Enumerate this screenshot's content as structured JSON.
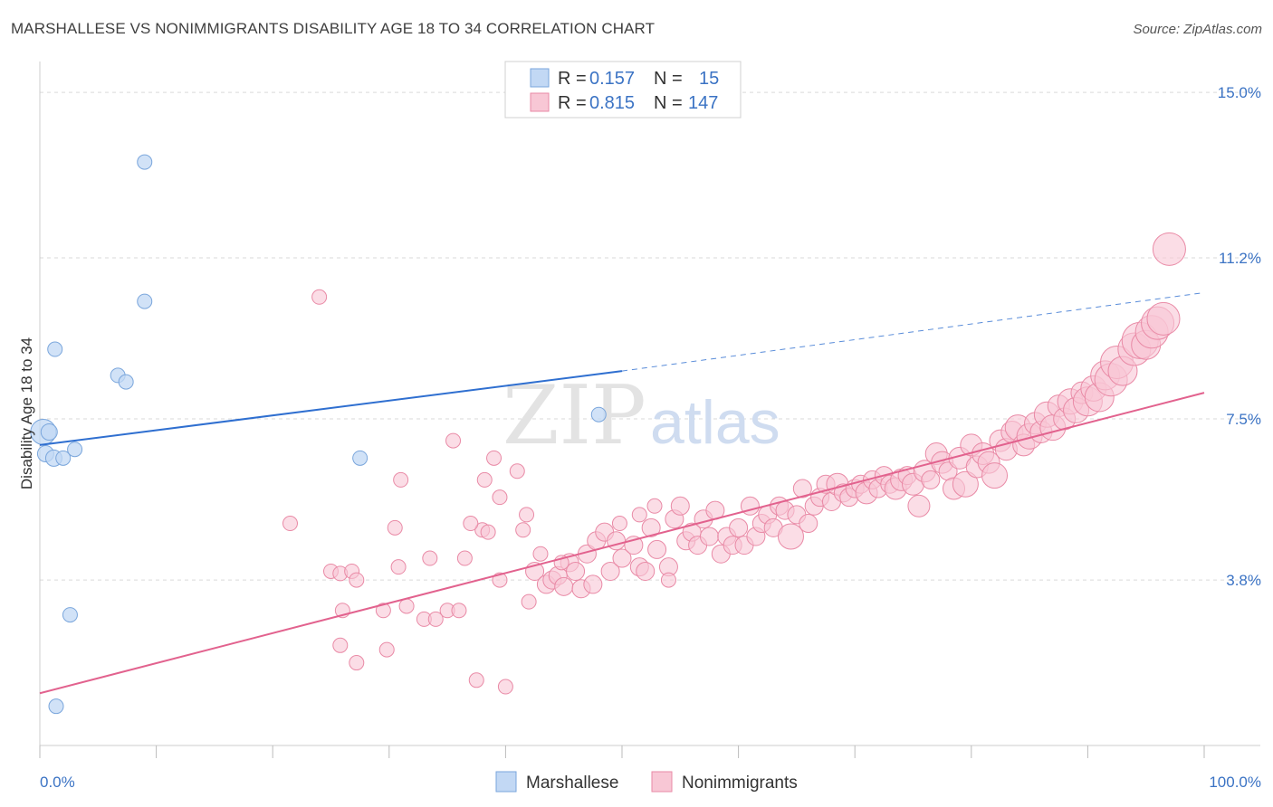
{
  "header": {
    "title": "MARSHALLESE VS NONIMMIGRANTS DISABILITY AGE 18 TO 34 CORRELATION CHART",
    "source": "Source: ZipAtlas.com"
  },
  "colors": {
    "blue_fill": "#c2d8f4",
    "blue_stroke": "#7aa6dc",
    "blue_line": "#2f6fd0",
    "pink_fill": "#f8c7d5",
    "pink_stroke": "#e98aa6",
    "pink_line": "#e2628e",
    "tick_text": "#3b73c4",
    "grid": "#d9d9d9"
  },
  "legend": {
    "rows": [
      {
        "r_label": "R =",
        "r_value": "0.157",
        "n_label": "N =",
        "n_value": "15"
      },
      {
        "r_label": "R =",
        "r_value": "0.815",
        "n_label": "N =",
        "n_value": "147"
      }
    ]
  },
  "watermark": {
    "zip": "ZIP",
    "atlas": "atlas"
  },
  "chart_data": {
    "type": "scatter",
    "title": "MARSHALLESE VS NONIMMIGRANTS DISABILITY AGE 18 TO 34 CORRELATION CHART",
    "xlabel": "",
    "ylabel": "Disability Age 18 to 34",
    "xlim": [
      0,
      100
    ],
    "ylim": [
      0,
      15.5
    ],
    "x_tick_labels": [
      "0.0%",
      "100.0%"
    ],
    "y_ticks": [
      3.8,
      7.5,
      11.2,
      15.0
    ],
    "y_tick_labels": [
      "3.8%",
      "7.5%",
      "11.2%",
      "15.0%"
    ],
    "grid": true,
    "legend_position": "top-center",
    "series": [
      {
        "name": "Marshallese",
        "color": "#c2d8f4",
        "points": [
          [
            0.3,
            7.2,
            14
          ],
          [
            0.8,
            7.2,
            9
          ],
          [
            0.5,
            6.7,
            9
          ],
          [
            1.2,
            6.6,
            9
          ],
          [
            2.0,
            6.6,
            8
          ],
          [
            3.0,
            6.8,
            8
          ],
          [
            1.3,
            9.1,
            8
          ],
          [
            6.7,
            8.5,
            8
          ],
          [
            7.4,
            8.35,
            8
          ],
          [
            9.0,
            13.4,
            8
          ],
          [
            9.0,
            10.2,
            8
          ],
          [
            2.6,
            3.0,
            8
          ],
          [
            1.4,
            0.9,
            8
          ],
          [
            27.5,
            6.6,
            8
          ],
          [
            48.0,
            7.6,
            8
          ]
        ],
        "trend": {
          "x0": 0,
          "y0": 6.9,
          "x1": 50,
          "y1": 8.6,
          "dashed_to_x": 100,
          "dashed_to_y": 10.4
        }
      },
      {
        "name": "Nonimmigrants",
        "color": "#f8c7d5",
        "points": [
          [
            24.0,
            10.3,
            8
          ],
          [
            21.5,
            5.1,
            8
          ],
          [
            25.0,
            4.0,
            8
          ],
          [
            25.8,
            3.95,
            8
          ],
          [
            26.8,
            4.0,
            8
          ],
          [
            27.2,
            3.8,
            8
          ],
          [
            26.0,
            3.1,
            8
          ],
          [
            25.8,
            2.3,
            8
          ],
          [
            27.2,
            1.9,
            8
          ],
          [
            29.5,
            3.1,
            8
          ],
          [
            29.8,
            2.2,
            8
          ],
          [
            30.5,
            5.0,
            8
          ],
          [
            30.8,
            4.1,
            8
          ],
          [
            31.5,
            3.2,
            8
          ],
          [
            33.0,
            2.9,
            8
          ],
          [
            34.0,
            2.9,
            8
          ],
          [
            35.0,
            3.1,
            8
          ],
          [
            36.0,
            3.1,
            8
          ],
          [
            35.5,
            7.0,
            8
          ],
          [
            36.5,
            4.3,
            8
          ],
          [
            37.5,
            1.5,
            8
          ],
          [
            38.0,
            4.95,
            8
          ],
          [
            38.5,
            4.9,
            8
          ],
          [
            39.0,
            6.6,
            8
          ],
          [
            39.5,
            5.7,
            8
          ],
          [
            39.5,
            3.8,
            8
          ],
          [
            40.0,
            1.35,
            8
          ],
          [
            41.0,
            6.3,
            8
          ],
          [
            41.5,
            4.95,
            8
          ],
          [
            41.8,
            5.3,
            8
          ],
          [
            42.5,
            4.0,
            10
          ],
          [
            43.5,
            3.7,
            10
          ],
          [
            44.0,
            3.8,
            10
          ],
          [
            44.5,
            3.9,
            10
          ],
          [
            45.0,
            3.65,
            10
          ],
          [
            45.5,
            4.2,
            10
          ],
          [
            46.0,
            4.0,
            10
          ],
          [
            46.5,
            3.6,
            10
          ],
          [
            47.5,
            3.7,
            10
          ],
          [
            47.0,
            4.4,
            10
          ],
          [
            47.8,
            4.7,
            10
          ],
          [
            48.5,
            4.9,
            10
          ],
          [
            49.0,
            4.0,
            10
          ],
          [
            49.5,
            4.7,
            10
          ],
          [
            50.0,
            4.3,
            10
          ],
          [
            51.0,
            4.6,
            10
          ],
          [
            51.5,
            4.1,
            10
          ],
          [
            52.0,
            4.0,
            10
          ],
          [
            52.5,
            5.0,
            10
          ],
          [
            53.0,
            4.5,
            10
          ],
          [
            54.0,
            4.1,
            10
          ],
          [
            54.5,
            5.2,
            10
          ],
          [
            55.0,
            5.5,
            10
          ],
          [
            55.5,
            4.7,
            10
          ],
          [
            56.0,
            4.9,
            10
          ],
          [
            56.5,
            4.6,
            10
          ],
          [
            57.0,
            5.2,
            10
          ],
          [
            57.5,
            4.8,
            10
          ],
          [
            58.0,
            5.4,
            10
          ],
          [
            58.5,
            4.4,
            10
          ],
          [
            59.0,
            4.8,
            10
          ],
          [
            59.5,
            4.6,
            10
          ],
          [
            60.0,
            5.0,
            10
          ],
          [
            60.5,
            4.6,
            10
          ],
          [
            61.0,
            5.5,
            10
          ],
          [
            61.5,
            4.8,
            10
          ],
          [
            62.0,
            5.1,
            10
          ],
          [
            62.5,
            5.3,
            10
          ],
          [
            63.0,
            5.0,
            10
          ],
          [
            63.5,
            5.5,
            10
          ],
          [
            64.0,
            5.4,
            10
          ],
          [
            64.5,
            4.8,
            14
          ],
          [
            65.0,
            5.3,
            10
          ],
          [
            65.5,
            5.9,
            10
          ],
          [
            66.0,
            5.1,
            10
          ],
          [
            66.5,
            5.5,
            10
          ],
          [
            67.0,
            5.7,
            10
          ],
          [
            67.5,
            6.0,
            10
          ],
          [
            68.0,
            5.6,
            10
          ],
          [
            68.5,
            6.0,
            12
          ],
          [
            69.0,
            5.8,
            10
          ],
          [
            69.5,
            5.7,
            10
          ],
          [
            70.0,
            5.9,
            10
          ],
          [
            70.5,
            6.0,
            10
          ],
          [
            71.0,
            5.8,
            12
          ],
          [
            71.5,
            6.1,
            10
          ],
          [
            72.0,
            5.9,
            10
          ],
          [
            72.5,
            6.2,
            10
          ],
          [
            73.0,
            6.0,
            10
          ],
          [
            73.5,
            5.9,
            12
          ],
          [
            74.0,
            6.1,
            12
          ],
          [
            74.5,
            6.2,
            10
          ],
          [
            75.0,
            6.0,
            12
          ],
          [
            75.5,
            5.5,
            12
          ],
          [
            76.0,
            6.3,
            12
          ],
          [
            76.5,
            6.1,
            10
          ],
          [
            77.0,
            6.7,
            12
          ],
          [
            77.5,
            6.5,
            12
          ],
          [
            78.0,
            6.3,
            10
          ],
          [
            78.5,
            5.9,
            12
          ],
          [
            79.0,
            6.6,
            12
          ],
          [
            79.5,
            6.0,
            14
          ],
          [
            80.0,
            6.9,
            12
          ],
          [
            80.5,
            6.4,
            12
          ],
          [
            81.0,
            6.7,
            12
          ],
          [
            81.5,
            6.5,
            12
          ],
          [
            82.0,
            6.2,
            14
          ],
          [
            82.5,
            7.0,
            12
          ],
          [
            83.0,
            6.8,
            12
          ],
          [
            83.5,
            7.2,
            12
          ],
          [
            84.0,
            7.3,
            14
          ],
          [
            84.5,
            6.9,
            12
          ],
          [
            85.0,
            7.1,
            14
          ],
          [
            85.5,
            7.4,
            12
          ],
          [
            86.0,
            7.2,
            12
          ],
          [
            86.5,
            7.6,
            14
          ],
          [
            87.0,
            7.3,
            14
          ],
          [
            87.5,
            7.8,
            12
          ],
          [
            88.0,
            7.5,
            12
          ],
          [
            88.5,
            7.9,
            14
          ],
          [
            89.0,
            7.7,
            14
          ],
          [
            89.5,
            8.1,
            12
          ],
          [
            90.0,
            7.9,
            16
          ],
          [
            90.5,
            8.2,
            14
          ],
          [
            91.0,
            8.0,
            16
          ],
          [
            91.5,
            8.5,
            16
          ],
          [
            92.0,
            8.4,
            18
          ],
          [
            92.5,
            8.8,
            18
          ],
          [
            93.0,
            8.6,
            16
          ],
          [
            94.0,
            9.1,
            18
          ],
          [
            94.5,
            9.3,
            20
          ],
          [
            95.0,
            9.2,
            16
          ],
          [
            95.5,
            9.5,
            18
          ],
          [
            96.0,
            9.7,
            18
          ],
          [
            96.5,
            9.8,
            18
          ],
          [
            97.0,
            11.4,
            18
          ],
          [
            54.0,
            3.8,
            8
          ],
          [
            49.8,
            5.1,
            8
          ],
          [
            52.8,
            5.5,
            8
          ],
          [
            51.5,
            5.3,
            8
          ],
          [
            42.0,
            3.3,
            8
          ],
          [
            44.8,
            4.2,
            8
          ],
          [
            43.0,
            4.4,
            8
          ],
          [
            37.0,
            5.1,
            8
          ],
          [
            38.2,
            6.1,
            8
          ],
          [
            33.5,
            4.3,
            8
          ],
          [
            31.0,
            6.1,
            8
          ]
        ],
        "trend": {
          "x0": 0,
          "y0": 1.2,
          "x1": 100,
          "y1": 8.1
        }
      }
    ]
  },
  "bottom_legend": {
    "items": [
      {
        "label": "Marshallese"
      },
      {
        "label": "Nonimmigrants"
      }
    ]
  }
}
